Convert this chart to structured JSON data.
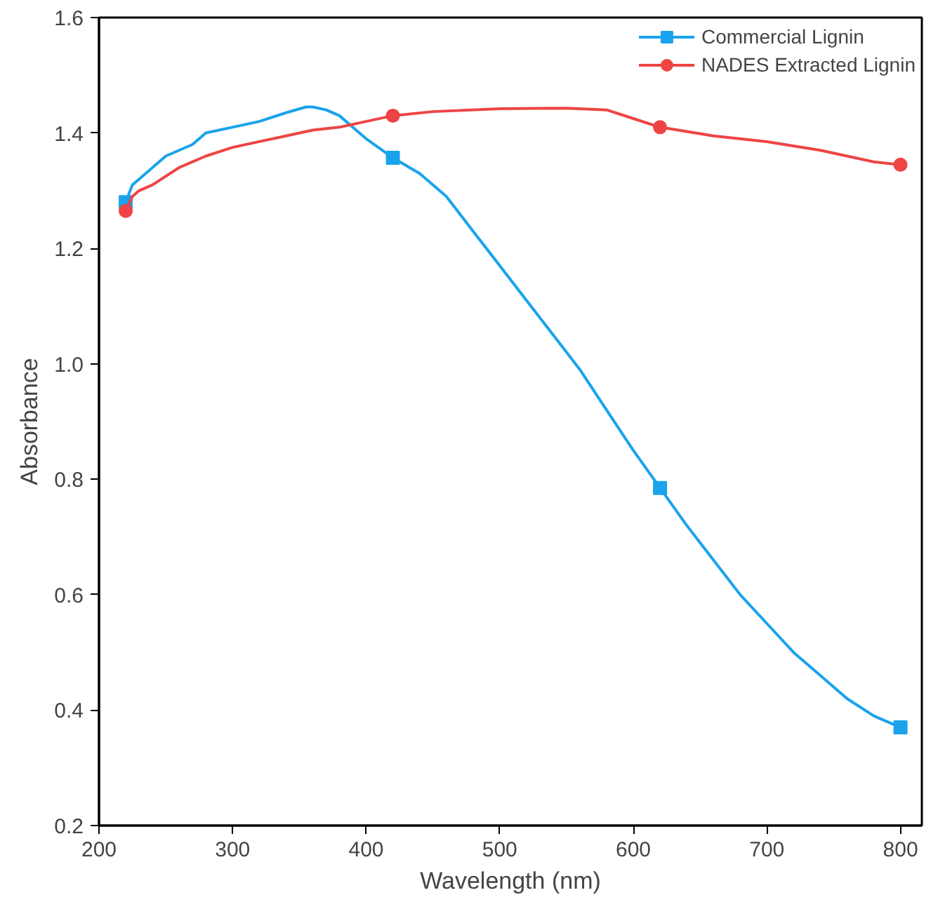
{
  "chart_data": {
    "type": "line",
    "xlabel": "Wavelength (nm)",
    "ylabel": "Absorbance",
    "xlim": [
      200,
      816
    ],
    "xticks": [
      200,
      300,
      400,
      500,
      600,
      700,
      800
    ],
    "ylim": [
      0.2,
      1.6
    ],
    "yticks": [
      0.2,
      0.4,
      0.6,
      0.8,
      {
        "value": 1,
        "label": "1.0"
      },
      1.2,
      1.4,
      1.6
    ],
    "grid": false,
    "legend": "top right",
    "line_style": "solid",
    "series": [
      {
        "name": "Commercial Lignin",
        "color": "#1aa3ec",
        "x": [
          220,
          225,
          230,
          240,
          250,
          260,
          270,
          280,
          300,
          320,
          340,
          355,
          360,
          370,
          380,
          400,
          420,
          440,
          460,
          480,
          500,
          520,
          540,
          560,
          580,
          600,
          620,
          640,
          660,
          680,
          700,
          720,
          740,
          760,
          780,
          800
        ],
        "values": [
          1.28,
          1.31,
          1.32,
          1.34,
          1.36,
          1.37,
          1.38,
          1.4,
          1.41,
          1.42,
          1.435,
          1.445,
          1.445,
          1.44,
          1.43,
          1.39,
          1.357,
          1.33,
          1.29,
          1.23,
          1.17,
          1.11,
          1.05,
          0.99,
          0.92,
          0.85,
          0.785,
          0.72,
          0.66,
          0.6,
          0.55,
          0.5,
          0.46,
          0.42,
          0.39,
          0.37
        ]
      },
      {
        "color": "#1aa3ec",
        "type": "scatter",
        "marker": "square",
        "x": [
          220,
          420,
          620,
          800
        ],
        "values": [
          1.28,
          1.357,
          0.785,
          0.37
        ]
      },
      {
        "name": "NADES Extracted Lignin",
        "color": "#ee4444",
        "x": [
          220,
          225,
          230,
          240,
          260,
          280,
          300,
          320,
          340,
          360,
          380,
          400,
          420,
          450,
          500,
          550,
          580,
          600,
          620,
          660,
          700,
          740,
          780,
          800
        ],
        "values": [
          1.265,
          1.29,
          1.3,
          1.31,
          1.34,
          1.36,
          1.375,
          1.385,
          1.395,
          1.405,
          1.41,
          1.42,
          1.43,
          1.437,
          1.442,
          1.443,
          1.44,
          1.425,
          1.41,
          1.395,
          1.385,
          1.37,
          1.35,
          1.345
        ]
      },
      {
        "color": "#ee4444",
        "type": "scatter",
        "marker": "circle",
        "x": [
          220,
          420,
          620,
          800
        ],
        "values": [
          1.265,
          1.43,
          1.41,
          1.345
        ]
      }
    ]
  }
}
